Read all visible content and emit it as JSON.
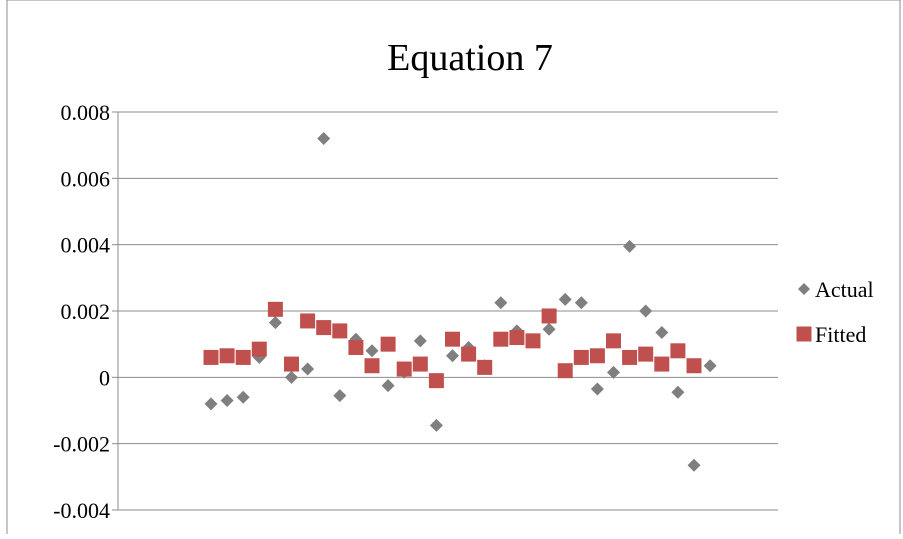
{
  "chart_data": {
    "type": "scatter",
    "title": "Equation 7",
    "xlabel": "",
    "ylabel": "",
    "ylim": [
      -0.004,
      0.008
    ],
    "yticks": [
      "0.008",
      "0.006",
      "0.004",
      "0.002",
      "0",
      "-0.002",
      "-0.004"
    ],
    "ytick_values": [
      0.008,
      0.006,
      0.004,
      0.002,
      0,
      -0.002,
      -0.004
    ],
    "grid": true,
    "legend_position": "right",
    "x": [
      1,
      2,
      3,
      4,
      5,
      6,
      7,
      8,
      9,
      10,
      11,
      12,
      13,
      14,
      15,
      16,
      17,
      18,
      19,
      20,
      21,
      22,
      23,
      24,
      25,
      26,
      27,
      28,
      29,
      30,
      31,
      32
    ],
    "series": [
      {
        "name": "Actual",
        "marker": "diamond",
        "color": "#7f7f7f",
        "values": [
          -0.0008,
          -0.0007,
          -0.0006,
          0.0006,
          0.00165,
          0.0,
          0.00025,
          0.0072,
          -0.00055,
          0.00115,
          0.0008,
          -0.00025,
          0.00015,
          0.0011,
          -0.00145,
          0.00065,
          0.0009,
          0.00035,
          0.00225,
          0.0014,
          0.0011,
          0.00145,
          0.00235,
          0.00225,
          -0.00035,
          0.00015,
          0.00395,
          0.002,
          0.00135,
          -0.00045,
          -0.00265,
          0.00035
        ]
      },
      {
        "name": "Fitted",
        "marker": "square",
        "color": "#c0504d",
        "values": [
          0.0006,
          0.00065,
          0.0006,
          0.00085,
          0.00205,
          0.0004,
          0.0017,
          0.0015,
          0.0014,
          0.0009,
          0.00035,
          0.001,
          0.00025,
          0.0004,
          -0.0001,
          0.00115,
          0.0007,
          0.0003,
          0.00115,
          0.0012,
          0.0011,
          0.00185,
          0.0002,
          0.0006,
          0.00065,
          0.0011,
          0.0006,
          0.0007,
          0.0004,
          0.0008,
          0.00035,
          null
        ]
      }
    ]
  }
}
